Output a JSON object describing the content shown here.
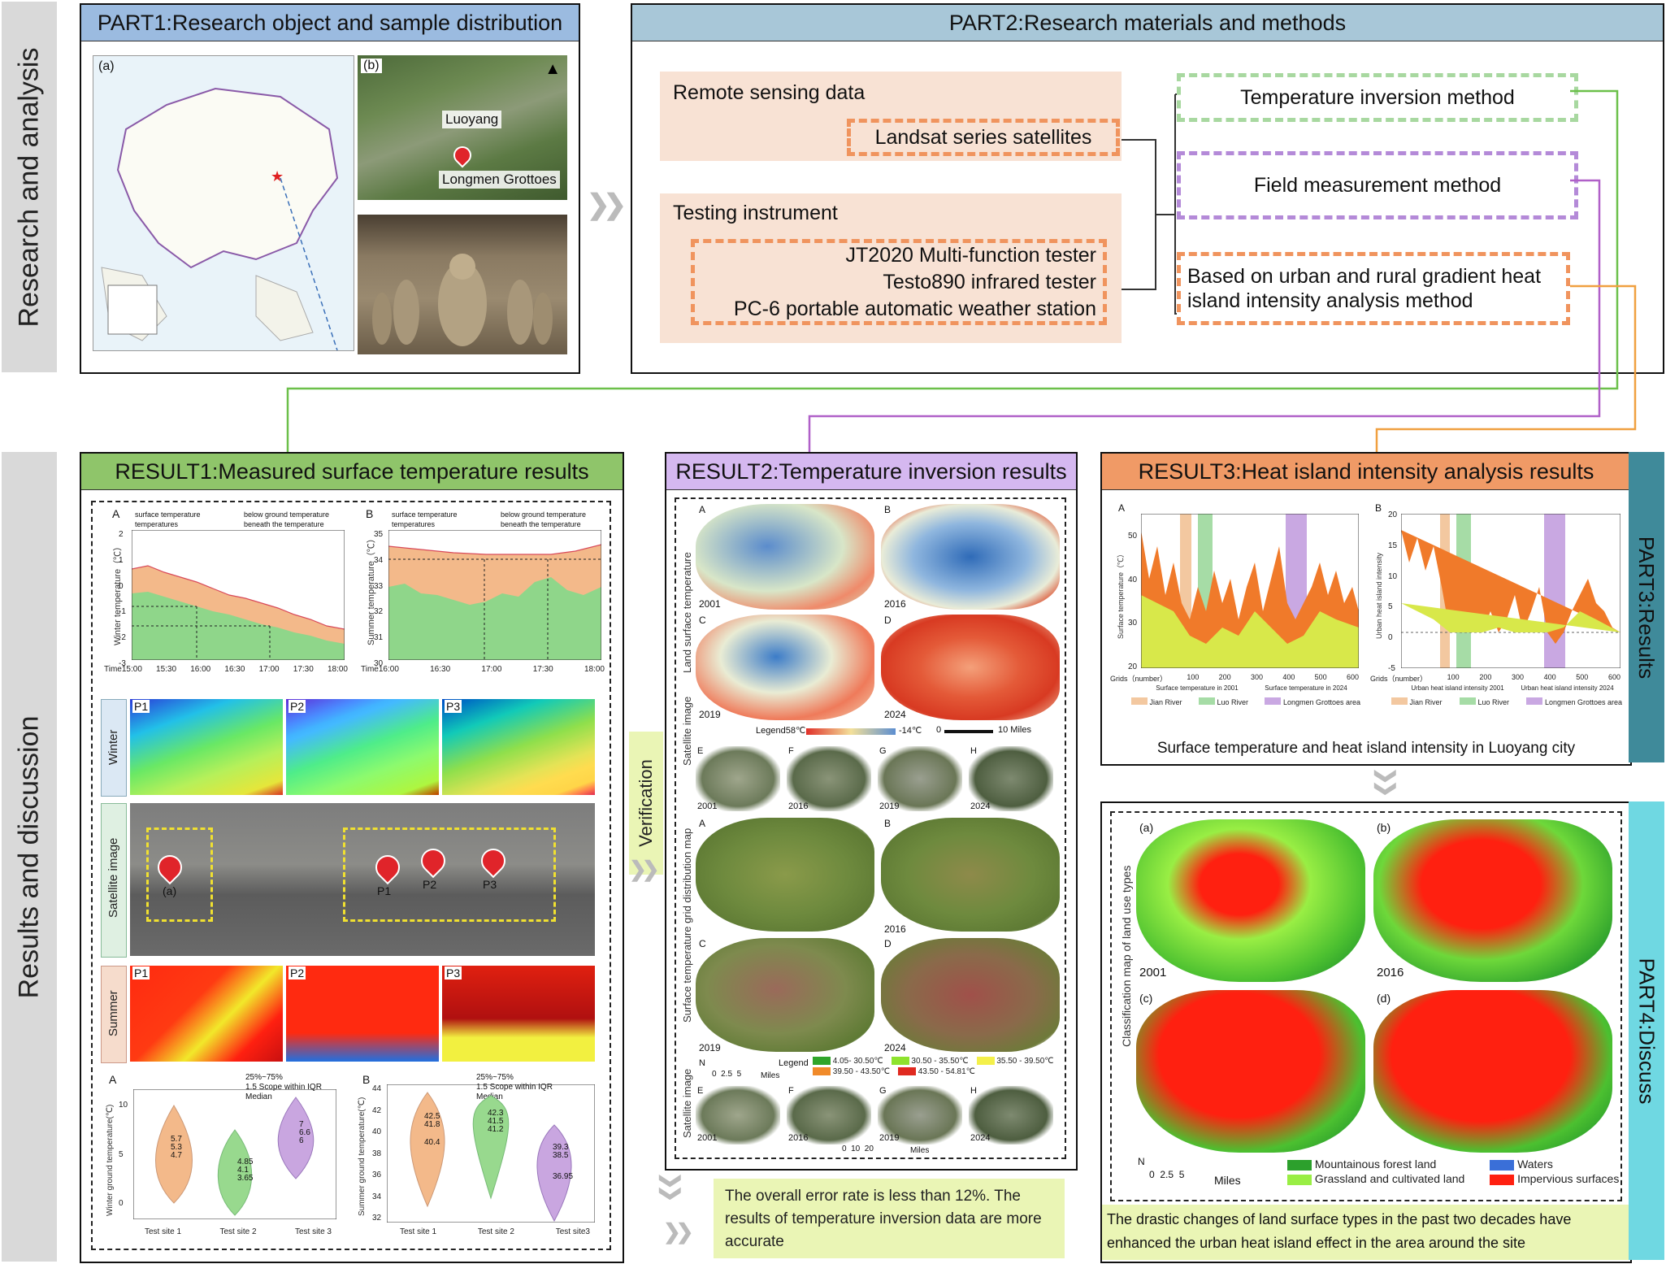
{
  "sidebars": {
    "top": "Research and analysis",
    "bottom": "Results and discussion",
    "part3": "PART3:Results",
    "part4": "PART4:Discuss"
  },
  "part1": {
    "title": "PART1:Research object and sample distribution",
    "map_label_a": "(a)",
    "map_label_b": "(b)",
    "place_luoyang": "Luoyang",
    "place_longmen": "Longmen Grottoes"
  },
  "part2": {
    "title": "PART2:Research materials and methods",
    "remote_sensing": "Remote sensing data",
    "landsat": "Landsat series satellites",
    "testing": "Testing instrument",
    "instruments": [
      "JT2020 Multi-function tester",
      "Testo890 infrared tester",
      "PC-6 portable automatic weather station"
    ],
    "method1": "Temperature inversion method",
    "method2": "Field measurement method",
    "method3": "Based on urban and rural gradient heat island intensity analysis method"
  },
  "result1": {
    "title": "RESULT1:Measured surface temperature results",
    "chartA": {
      "panel": "A",
      "legend": [
        "surface temperature",
        "temperatures",
        "below ground temperature",
        "beneath the temperature"
      ],
      "ylabel": "Winter temperature（℃）",
      "xticks": [
        "Time15:00",
        "15:30",
        "16:00",
        "16:30",
        "17:00",
        "17:30",
        "18:00"
      ],
      "yticks": [
        "2",
        "1",
        "0",
        "-1",
        "-2",
        "-3"
      ]
    },
    "chartB": {
      "panel": "B",
      "legend": [
        "surface temperature",
        "temperatures",
        "below ground temperature",
        "beneath the temperature"
      ],
      "ylabel": "Summer temperature（℃）",
      "xticks": [
        "Time16:00",
        "16:30",
        "17:00",
        "17:30",
        "18:00"
      ],
      "yticks": [
        "35",
        "34",
        "33",
        "32",
        "31",
        "30"
      ]
    },
    "row_winter": "Winter",
    "row_satellite": "Satellite image",
    "row_summer": "Summer",
    "points": [
      "P1",
      "P2",
      "P3"
    ],
    "sat_points": [
      "(a)",
      "P1",
      "P2",
      "P3"
    ],
    "violinA": {
      "panel": "A",
      "legend": [
        "25%~75%",
        "1.5 Scope within IQR",
        "Median"
      ],
      "ylabel": "Winter ground temperature(℃)",
      "yticks": [
        "10",
        "5",
        "0"
      ],
      "sites": [
        "Test site 1",
        "Test site 2",
        "Test site 3"
      ],
      "labels": [
        [
          "5.7",
          "5.3",
          "4.7"
        ],
        [
          "4.85",
          "4.1",
          "3.65"
        ],
        [
          "7",
          "6.6",
          "6"
        ]
      ]
    },
    "violinB": {
      "panel": "B",
      "legend": [
        "25%~75%",
        "1.5 Scope within IQR",
        "Median"
      ],
      "ylabel": "Summer ground temperature(℃)",
      "yticks": [
        "44",
        "42",
        "40",
        "38",
        "36",
        "34",
        "32"
      ],
      "sites": [
        "Test site 1",
        "Test site 2",
        "Test site3"
      ],
      "labels": [
        [
          "42.5",
          "41.8",
          "40.4"
        ],
        [
          "42.3",
          "41.5",
          "41.2"
        ],
        [
          "39.3",
          "38.5",
          "36.95"
        ]
      ]
    }
  },
  "verification": "Verification",
  "result2": {
    "title": "RESULT2:Temperature inversion results",
    "side_lst": "Land surface temperature",
    "side_sat": "Satellite image",
    "side_grid": "Surface temperature grid distribution map",
    "side_sat2": "Satellite image",
    "years": [
      "2001",
      "2016",
      "2019",
      "2024"
    ],
    "panels": [
      "A",
      "B",
      "C",
      "D"
    ],
    "sat_panels": [
      "E",
      "F",
      "G",
      "H"
    ],
    "legend1": "Legend58℃",
    "legend1_low": "-14℃",
    "legend1_scale": "0",
    "legend1_miles": "10 Miles",
    "legend2_title": "Legend",
    "legend2": [
      "4.05- 30.50℃",
      "30.50 - 35.50℃",
      "35.50 - 39.50℃",
      "39.50 - 43.50℃",
      "43.50 - 54.81℃"
    ],
    "legend2_colors": [
      "#2fa52a",
      "#8ee32e",
      "#f4f04a",
      "#f08a2a",
      "#e02a20"
    ],
    "scale_small": "0  2.5  5",
    "scale_small_unit": "Miles",
    "scale_big": "0  10  20",
    "scale_big_unit": "Miles",
    "north": "N",
    "note": "The overall error rate is less than 12%. The results of temperature inversion data are more accurate"
  },
  "result3": {
    "title": "RESULT3:Heat island intensity analysis results",
    "chartA": {
      "panel": "A",
      "ylabel": "Surface temperature（℃）",
      "yticks": [
        "50",
        "40",
        "30",
        "20"
      ],
      "xticks": [
        "Grids（number）",
        "100",
        "200",
        "300",
        "400",
        "500",
        "600"
      ],
      "series": [
        "Surface temperature in 2001",
        "Surface temperature in 2024"
      ],
      "legend": [
        "Jian River",
        "Luo River",
        "Longmen Grottoes area"
      ]
    },
    "chartB": {
      "panel": "B",
      "ylabel": "Urban heat island intensity",
      "yticks": [
        "20",
        "15",
        "10",
        "5",
        "0",
        "-5"
      ],
      "xticks": [
        "Grids（number）",
        "100",
        "200",
        "300",
        "400",
        "500",
        "600"
      ],
      "series": [
        "Urban heat island intensity 2001",
        "Urban heat island intensity 2024"
      ],
      "legend": [
        "Jian River",
        "Luo River",
        "Longmen Grottoes area"
      ]
    },
    "caption": "Surface temperature and heat island intensity in Luoyang city"
  },
  "part4": {
    "side": "Classification map of land use types",
    "labels": [
      "(a)",
      "(b)",
      "(c)",
      "(d)"
    ],
    "years": [
      "2001",
      "2016"
    ],
    "legend": [
      "Mountainous forest land",
      "Waters",
      "Grassland and cultivated land",
      "Impervious surfaces"
    ],
    "legend_colors": [
      "#2ca02c",
      "#3a6fd8",
      "#99ee44",
      "#ff2010"
    ],
    "scale": "0  2.5  5",
    "scale_unit": "Miles",
    "north": "N",
    "conclusion": "The drastic changes of land surface types in the past two decades have enhanced the urban heat island effect in the area around the site"
  },
  "colors": {
    "part1_header": "#9bbbe0",
    "part2_header": "#a8c7d8",
    "result1_header": "#8fc56a",
    "result2_header": "#d5b8f0",
    "result3_header": "#f09a66",
    "teal": "#3f8a9a",
    "cyan": "#6fd8e2",
    "peach": "#f8e2d4",
    "lime": "#eaf5b5"
  }
}
